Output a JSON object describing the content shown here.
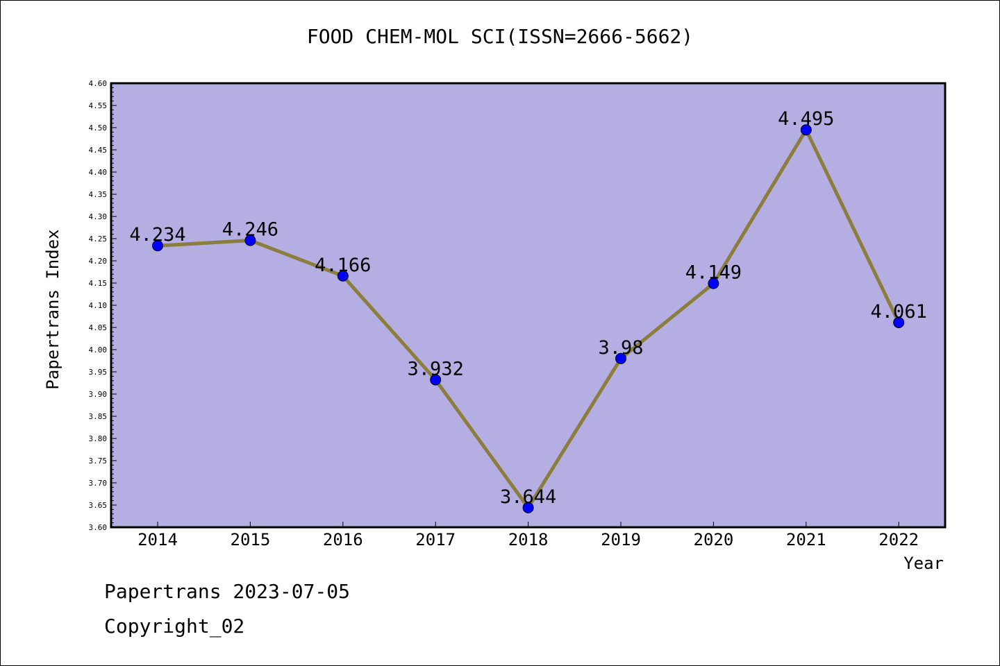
{
  "chart_data": {
    "type": "line",
    "title": "FOOD CHEM-MOL SCI(ISSN=2666-5662)",
    "xlabel": "Year",
    "ylabel": "Papertrans Index",
    "x": [
      "2014",
      "2015",
      "2016",
      "2017",
      "2018",
      "2019",
      "2020",
      "2021",
      "2022"
    ],
    "series": [
      {
        "values": [
          4.234,
          4.246,
          4.166,
          3.932,
          3.644,
          3.98,
          4.149,
          4.495,
          4.061
        ],
        "labels": [
          "4.234",
          "4.246",
          "4.166",
          "3.932",
          "3.644",
          "3.98",
          "4.149",
          "4.495",
          "4.061"
        ]
      }
    ],
    "ylim": [
      3.6,
      4.6
    ],
    "ytick_step": 0.05,
    "grid": false,
    "colors": {
      "plot_background": "#b4aee2",
      "line": "#8b7d3b",
      "marker": "#0000ff"
    }
  },
  "footer": {
    "line1": "Papertrans 2023-07-05",
    "line2": "Copyright_02"
  }
}
